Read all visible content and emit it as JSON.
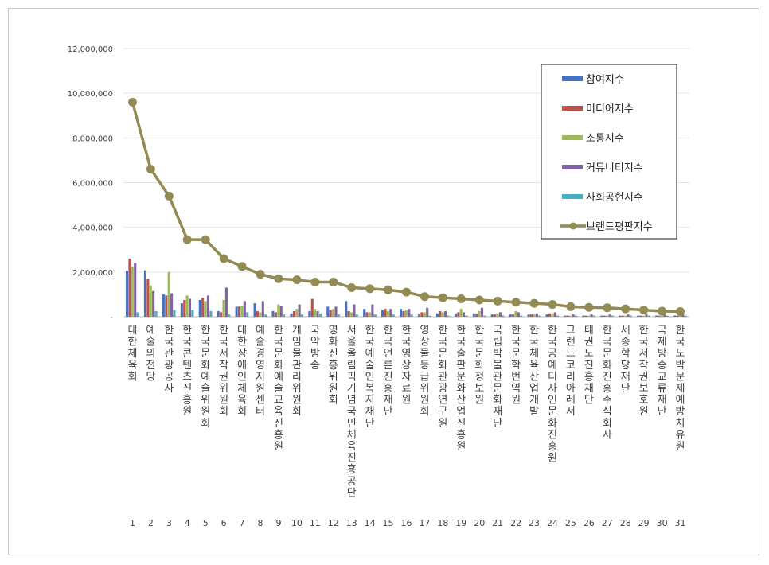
{
  "chart_data": {
    "type": "bar",
    "title": "",
    "xlabel": "",
    "ylabel": "",
    "ylim": [
      0,
      12000000
    ],
    "yticks": [
      0,
      2000000,
      4000000,
      6000000,
      8000000,
      10000000,
      12000000
    ],
    "ytick_labels": [
      "-",
      "2,000,000",
      "4,000,000",
      "6,000,000",
      "8,000,000",
      "10,000,000",
      "12,000,000"
    ],
    "grid": true,
    "legend_position": "top-right",
    "categories": [
      "대한체육회",
      "예술의전당",
      "한국관광공사",
      "한국콘텐츠진흥원",
      "한국문화예술위원회",
      "한국저작권위원회",
      "대한장애인체육회",
      "예술경영지원센터",
      "한국문화예술교육진흥원",
      "게임물관리위원회",
      "국악방송",
      "영화진흥위원회",
      "서울올림픽기념국민체육진흥공단",
      "한국예술인복지재단",
      "한국언론진흥재단",
      "한국영상자료원",
      "영상물등급위원회",
      "한국문화관광연구원",
      "한국출판문화산업진흥원",
      "한국문화정보원",
      "국립박물관문화재단",
      "한국문학번역원",
      "한국체육산업개발",
      "한국공예디자인문화진흥원",
      "그랜드코리아레저",
      "태권도진흥재단",
      "한국문화진흥주식회사",
      "세종학당재단",
      "한국저작권보호원",
      "국제방송교류재단",
      "한국도박문제예방치유원"
    ],
    "ranks": [
      "1",
      "2",
      "3",
      "4",
      "5",
      "6",
      "7",
      "8",
      "9",
      "10",
      "11",
      "12",
      "13",
      "14",
      "15",
      "16",
      "17",
      "18",
      "19",
      "20",
      "21",
      "22",
      "23",
      "24",
      "25",
      "26",
      "27",
      "28",
      "29",
      "30",
      "31"
    ],
    "series": [
      {
        "name": "참여지수",
        "color": "#4472c4",
        "values": [
          2050000,
          2080000,
          1000000,
          600000,
          750000,
          250000,
          450000,
          600000,
          250000,
          150000,
          250000,
          450000,
          700000,
          350000,
          300000,
          350000,
          100000,
          150000,
          150000,
          150000,
          100000,
          100000,
          100000,
          100000,
          50000,
          50000,
          50000,
          50000,
          50000,
          50000,
          50000
        ]
      },
      {
        "name": "미디어지수",
        "color": "#c0504d",
        "values": [
          2600000,
          1700000,
          950000,
          750000,
          850000,
          200000,
          450000,
          250000,
          200000,
          250000,
          800000,
          300000,
          250000,
          200000,
          350000,
          250000,
          200000,
          250000,
          200000,
          150000,
          100000,
          100000,
          100000,
          150000,
          50000,
          50000,
          50000,
          50000,
          50000,
          50000,
          50000
        ]
      },
      {
        "name": "소통지수",
        "color": "#9bbb59",
        "values": [
          2250000,
          1400000,
          2000000,
          950000,
          700000,
          750000,
          500000,
          200000,
          550000,
          350000,
          350000,
          350000,
          200000,
          200000,
          250000,
          300000,
          200000,
          200000,
          350000,
          250000,
          150000,
          250000,
          100000,
          150000,
          50000,
          50000,
          50000,
          50000,
          50000,
          50000,
          50000
        ]
      },
      {
        "name": "커뮤니티지수",
        "color": "#8064a2",
        "values": [
          2400000,
          1150000,
          1050000,
          800000,
          950000,
          1300000,
          700000,
          700000,
          500000,
          550000,
          250000,
          450000,
          550000,
          550000,
          350000,
          350000,
          400000,
          250000,
          200000,
          400000,
          200000,
          200000,
          150000,
          200000,
          100000,
          100000,
          100000,
          100000,
          100000,
          100000,
          100000
        ]
      },
      {
        "name": "사회공헌지수",
        "color": "#4bacc6",
        "values": [
          200000,
          250000,
          300000,
          300000,
          250000,
          100000,
          200000,
          100000,
          100000,
          100000,
          150000,
          100000,
          100000,
          100000,
          100000,
          100000,
          50000,
          50000,
          50000,
          50000,
          50000,
          50000,
          50000,
          50000,
          50000,
          50000,
          50000,
          50000,
          50000,
          50000,
          50000
        ]
      }
    ],
    "line_series": {
      "name": "브랜드평판지수",
      "color": "#948a54",
      "values": [
        9600000,
        6600000,
        5400000,
        3450000,
        3450000,
        2600000,
        2250000,
        1900000,
        1700000,
        1650000,
        1550000,
        1550000,
        1300000,
        1250000,
        1200000,
        1100000,
        900000,
        850000,
        800000,
        750000,
        700000,
        650000,
        600000,
        550000,
        450000,
        420000,
        400000,
        350000,
        300000,
        250000,
        230000
      ]
    }
  }
}
